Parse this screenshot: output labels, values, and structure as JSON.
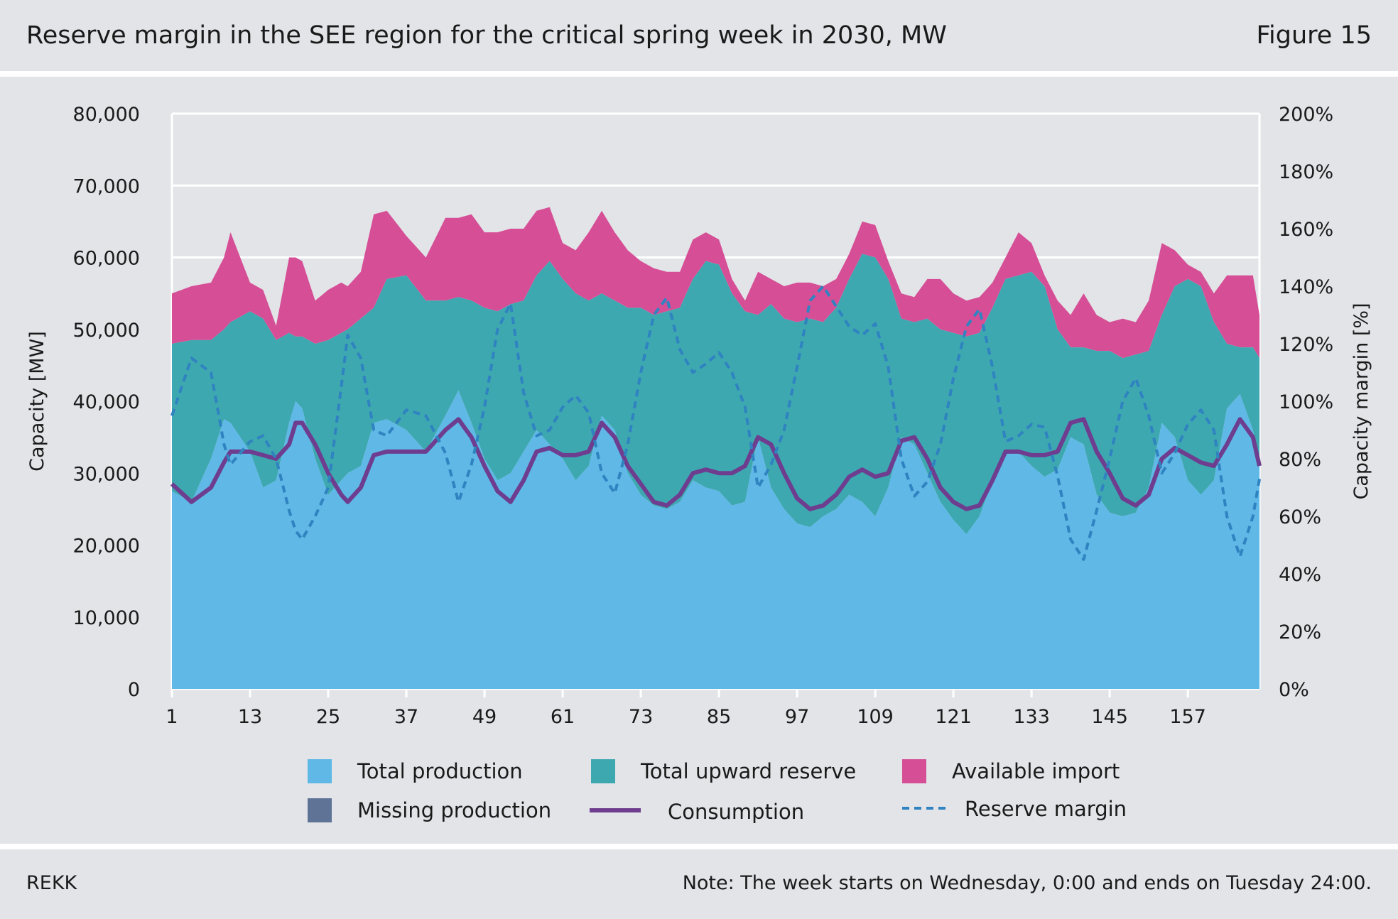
{
  "header": {
    "title": "Reserve margin in the SEE region for the critical spring week in 2030, MW",
    "figure_label": "Figure 15"
  },
  "footer": {
    "source": "REKK",
    "note": "Note: The week starts on Wednesday, 0:00 and ends on Tuesday 24:00."
  },
  "colors": {
    "total_production": "#5fb8e6",
    "total_upward_reserve": "#3ea8b0",
    "available_import": "#d64f96",
    "missing_production": "#5f7396",
    "consumption": "#6e3d8f",
    "reserve_margin": "#2f83c0"
  },
  "chart_data": {
    "type": "area",
    "xlabel": "",
    "ylabel": "Capacity [MW]",
    "y2label": "Capacity margin [%]",
    "ylim": [
      0,
      80000
    ],
    "y2lim": [
      0,
      200
    ],
    "xlim": [
      1,
      168
    ],
    "yticks": [
      "0",
      "10,000",
      "20,000",
      "30,000",
      "40,000",
      "50,000",
      "60,000",
      "70,000",
      "80,000"
    ],
    "y2ticks": [
      "0%",
      "20%",
      "40%",
      "60%",
      "80%",
      "100%",
      "120%",
      "140%",
      "160%",
      "180%",
      "200%"
    ],
    "xticks": [
      "1",
      "13",
      "25",
      "37",
      "49",
      "61",
      "73",
      "85",
      "97",
      "109",
      "121",
      "133",
      "145",
      "157"
    ],
    "grid": "horizontal",
    "legend_position": "bottom",
    "legend": [
      {
        "key": "total_production",
        "label": "Total production",
        "kind": "area"
      },
      {
        "key": "total_upward_reserve",
        "label": "Total upward reserve",
        "kind": "area"
      },
      {
        "key": "available_import",
        "label": "Available import",
        "kind": "area"
      },
      {
        "key": "missing_production",
        "label": "Missing production",
        "kind": "area"
      },
      {
        "key": "consumption",
        "label": "Consumption",
        "kind": "line"
      },
      {
        "key": "reserve_margin",
        "label": "Reserve margin",
        "kind": "dashed"
      }
    ],
    "anchors": {
      "x": [
        1,
        4,
        7,
        9,
        10,
        13,
        15,
        17,
        19,
        20,
        21,
        23,
        25,
        27,
        28,
        30,
        32,
        34,
        37,
        40,
        43,
        45,
        47,
        49,
        51,
        53,
        55,
        57,
        59,
        61,
        63,
        65,
        67,
        69,
        71,
        73,
        75,
        77,
        79,
        81,
        83,
        85,
        87,
        89,
        91,
        93,
        95,
        97,
        99,
        101,
        103,
        105,
        107,
        109,
        111,
        113,
        115,
        117,
        119,
        121,
        123,
        125,
        127,
        129,
        131,
        133,
        135,
        137,
        139,
        141,
        143,
        145,
        147,
        149,
        151,
        153,
        155,
        157,
        159,
        161,
        163,
        165,
        167,
        168
      ],
      "total_production": [
        27500,
        26000,
        32000,
        37500,
        37000,
        33000,
        28000,
        29000,
        37000,
        40000,
        39000,
        32000,
        27000,
        29000,
        30000,
        31000,
        37000,
        37500,
        36000,
        33000,
        38000,
        41500,
        37000,
        32000,
        29000,
        30000,
        33000,
        36000,
        34000,
        32000,
        29000,
        31000,
        38000,
        36000,
        30000,
        27000,
        25500,
        25000,
        26000,
        29000,
        28000,
        27500,
        25500,
        26000,
        35000,
        28000,
        25000,
        23000,
        22500,
        24000,
        25000,
        27000,
        26000,
        24000,
        28000,
        35000,
        34000,
        30000,
        26000,
        23500,
        21500,
        24000,
        29000,
        33000,
        33000,
        31000,
        29500,
        30500,
        35000,
        34000,
        27000,
        24500,
        24000,
        24500,
        28000,
        37000,
        35000,
        29000,
        27000,
        29000,
        39000,
        41000,
        36000,
        31000
      ],
      "total_upward_reserve": [
        48000,
        48500,
        48500,
        50000,
        51000,
        52500,
        51500,
        48500,
        49500,
        49000,
        49000,
        48000,
        48500,
        49500,
        50000,
        51500,
        53000,
        57000,
        57500,
        54000,
        54000,
        54500,
        54000,
        53000,
        52500,
        53500,
        54000,
        57500,
        59500,
        57000,
        55000,
        54000,
        55000,
        54000,
        53000,
        53000,
        52000,
        52500,
        53000,
        57000,
        59500,
        59000,
        55000,
        52500,
        52000,
        53500,
        51500,
        51000,
        51500,
        51000,
        53000,
        57000,
        60500,
        60000,
        57000,
        51500,
        51000,
        51500,
        50000,
        49500,
        49000,
        49500,
        53000,
        57000,
        57500,
        58000,
        56000,
        50000,
        47500,
        47500,
        47000,
        47000,
        46000,
        46500,
        47000,
        52000,
        56000,
        57000,
        56000,
        51000,
        48000,
        47500,
        47500,
        46000
      ],
      "available_import": [
        55000,
        56000,
        56500,
        60000,
        63500,
        56500,
        55500,
        50500,
        60000,
        60000,
        59500,
        54000,
        55500,
        56500,
        56000,
        58000,
        66000,
        66500,
        63000,
        60000,
        65500,
        65500,
        66000,
        63500,
        63500,
        64000,
        64000,
        66500,
        67000,
        62000,
        61000,
        63500,
        66500,
        63500,
        61000,
        59500,
        58500,
        58000,
        58000,
        62500,
        63500,
        62500,
        57000,
        54000,
        58000,
        57000,
        56000,
        56500,
        56500,
        56000,
        57000,
        60500,
        65000,
        64500,
        59500,
        55000,
        54500,
        57000,
        57000,
        55000,
        54000,
        54500,
        56500,
        60000,
        63500,
        62000,
        57500,
        54000,
        52000,
        55000,
        52000,
        51000,
        51500,
        51000,
        54000,
        62000,
        61000,
        59000,
        58000,
        55000,
        57500,
        57500,
        57500,
        52000
      ],
      "consumption": [
        28500,
        26000,
        28000,
        31500,
        33000,
        33000,
        32500,
        32000,
        34000,
        37000,
        37000,
        34000,
        30000,
        27000,
        26000,
        28000,
        32500,
        33000,
        33000,
        33000,
        36000,
        37500,
        35000,
        31000,
        27500,
        26000,
        29000,
        33000,
        33500,
        32500,
        32500,
        33000,
        37000,
        35000,
        31000,
        28500,
        26000,
        25500,
        27000,
        30000,
        30500,
        30000,
        30000,
        31000,
        35000,
        34000,
        30000,
        26500,
        25000,
        25500,
        27000,
        29500,
        30500,
        29500,
        30000,
        34500,
        35000,
        32000,
        28000,
        26000,
        25000,
        25500,
        29000,
        33000,
        33000,
        32500,
        32500,
        33000,
        37000,
        37500,
        33000,
        30000,
        26500,
        25500,
        27000,
        32000,
        33500,
        32500,
        31500,
        31000,
        34000,
        37500,
        35000,
        31000
      ],
      "reserve_margin": [
        95,
        115,
        110,
        85,
        78,
        86,
        88,
        80,
        62,
        55,
        52,
        60,
        70,
        105,
        123,
        115,
        90,
        88,
        97,
        95,
        82,
        65,
        78,
        98,
        125,
        134,
        103,
        88,
        90,
        98,
        102,
        96,
        75,
        68,
        85,
        110,
        130,
        136,
        118,
        110,
        113,
        117,
        110,
        98,
        70,
        78,
        90,
        112,
        135,
        140,
        133,
        126,
        123,
        127,
        112,
        80,
        67,
        72,
        85,
        108,
        126,
        132,
        112,
        86,
        88,
        92,
        91,
        74,
        52,
        45,
        62,
        80,
        100,
        108,
        95,
        75,
        82,
        92,
        97,
        90,
        60,
        46,
        60,
        73
      ]
    }
  }
}
